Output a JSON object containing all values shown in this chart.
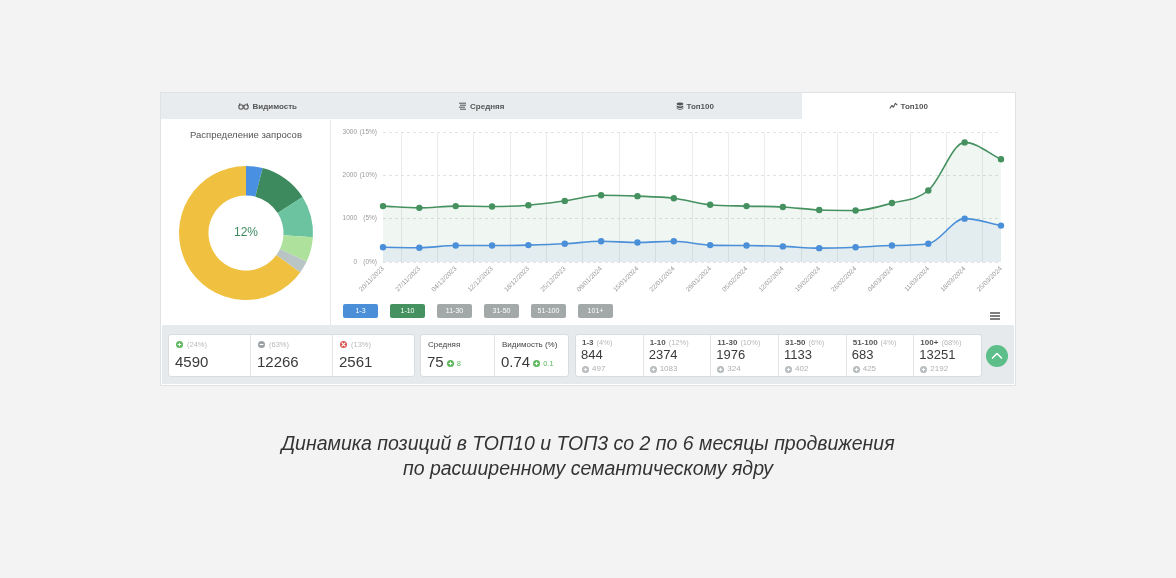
{
  "chart_data": [
    {
      "type": "other",
      "annotations": [
        "Видимость",
        "Средняя",
        "Топ100",
        "Топ100"
      ]
    },
    {
      "type": "donut",
      "title": "Распределение запросов",
      "categories": [
        null,
        null,
        null,
        null,
        null,
        null
      ],
      "values": [
        4,
        12,
        10,
        6,
        3,
        65
      ],
      "colors": [
        "#4a90e2",
        "#3d8a5f",
        "#6cc3a0",
        "#aee29c",
        "#b9c4c4",
        "#f0c040"
      ],
      "annotations": [
        "12%"
      ]
    },
    {
      "type": "area",
      "categories": [
        "20/11/2023",
        "27/11/2023",
        "04/12/2023",
        "12/12/2023",
        "18/12/2023",
        "25/12/2023",
        "09/01/2024",
        "15/01/2024",
        "22/01/2024",
        "29/01/2024",
        "05/02/2024",
        "12/02/2024",
        "19/02/2024",
        "26/02/2024",
        "04/03/2024",
        "11/03/2024",
        "18/03/2024",
        "25/03/2024"
      ],
      "series": [
        {
          "name": "1-3",
          "color": "#4a8fd8",
          "values": [
            340,
            330,
            380,
            380,
            390,
            420,
            480,
            450,
            480,
            390,
            380,
            360,
            320,
            340,
            380,
            420,
            1000,
            840
          ]
        },
        {
          "name": "1-10",
          "color": "#45915f",
          "values": [
            1290,
            1250,
            1290,
            1280,
            1310,
            1410,
            1540,
            1520,
            1470,
            1320,
            1290,
            1270,
            1200,
            1190,
            1360,
            1650,
            2760,
            2370
          ]
        }
      ],
      "ylim": [
        0,
        3000
      ],
      "yticks": [
        0,
        1000,
        2000,
        3000
      ],
      "y2lim": [
        0,
        15
      ],
      "y2ticks": [
        {
          "value": 0,
          "label": "(0%)"
        },
        {
          "value": 5,
          "label": "(5%)"
        },
        {
          "value": 10,
          "label": "(10%)"
        },
        {
          "value": 15,
          "label": "(15%)"
        }
      ],
      "annotations": [
        "11-30",
        "31-50",
        "51-100",
        "101+"
      ],
      "grid": true,
      "legend": "bottom",
      "marker": "circle",
      "line_style": "solid"
    },
    {
      "type": "other",
      "annotations": [
        "(24%)",
        "4590",
        "(63%)",
        "12266",
        "(13%)",
        "2561",
        "Средняя",
        "75",
        "8",
        "Видимость (%)",
        "0.74",
        "0.1",
        "1-3",
        "(4%)",
        "844",
        "497",
        "1-10",
        "(12%)",
        "2374",
        "1083",
        "11-30",
        "(10%)",
        "1976",
        "324",
        "31-50",
        "(6%)",
        "1133",
        "402",
        "51-100",
        "(4%)",
        "683",
        "425",
        "100+",
        "(68%)",
        "13251",
        "2192",
        "Динамика позиций в ТОП10 и ТОП3 со 2 по 6 месяцы продвижения по расширенному семантическому ядру"
      ]
    }
  ]
}
